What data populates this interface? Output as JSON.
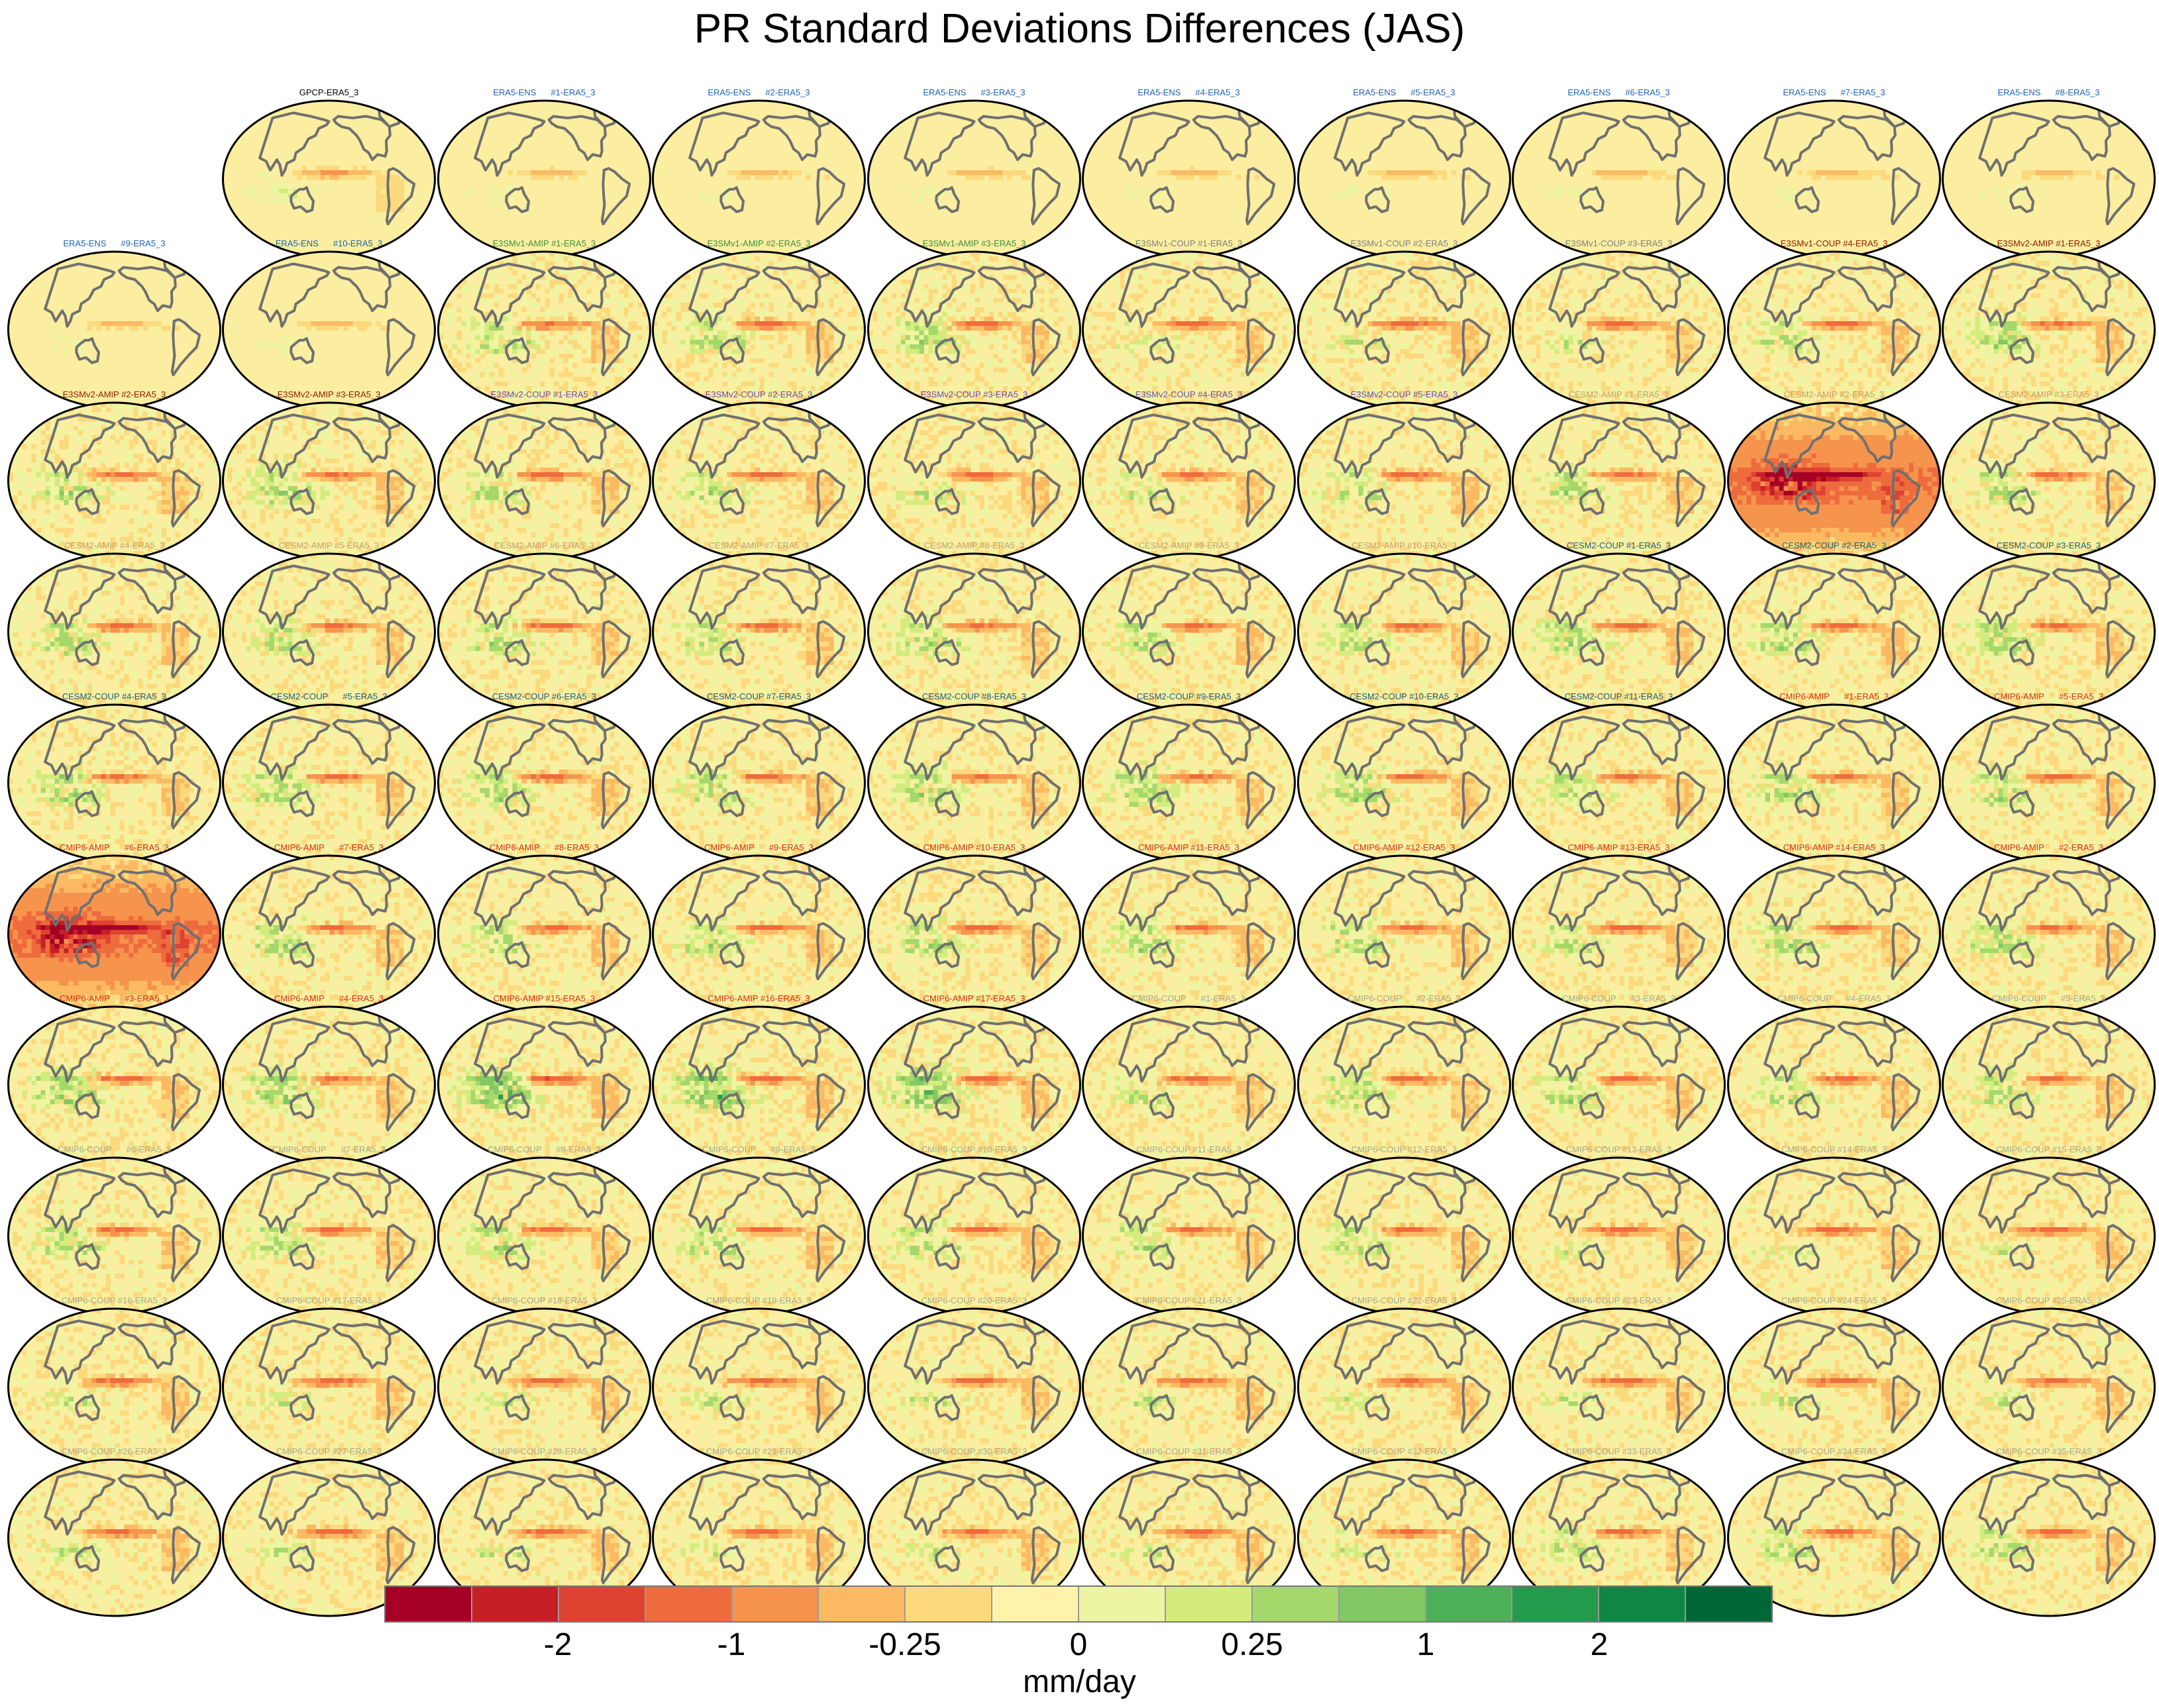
{
  "title": "PR Standard Deviations Differences (JAS)",
  "colorbar": {
    "colors": [
      "#a50026",
      "#c61f26",
      "#de4231",
      "#ee6b3d",
      "#f6944e",
      "#fbba62",
      "#fdd97d",
      "#fef3a8",
      "#edf5a2",
      "#d3ec7d",
      "#a5d86a",
      "#83c862",
      "#4fb05a",
      "#239a4c",
      "#0f8643",
      "#006837"
    ],
    "ticks": [
      {
        "label": "-2",
        "value": -2
      },
      {
        "label": "-1",
        "value": -1
      },
      {
        "label": "-0.25",
        "value": -0.25
      },
      {
        "label": "0",
        "value": 0
      },
      {
        "label": "0.25",
        "value": 0.25
      },
      {
        "label": "1",
        "value": 1
      },
      {
        "label": "2",
        "value": 2
      }
    ],
    "units": "mm/day"
  },
  "map_colors": {
    "ocean_background": "#fbeea0",
    "continent_outline": "#707070",
    "border": "#000000"
  },
  "label_colors": {
    "black": "#000000",
    "blue": "#1e63b4",
    "green": "#3f8f3f",
    "gray": "#808080",
    "darkred": "#8b1a00",
    "purple": "#6b4fa8",
    "tan": "#c49c6c",
    "teal": "#1a5f7a",
    "red": "#d0321a",
    "olive": "#a8a88a"
  },
  "panels": [
    [
      null,
      {
        "a": "GPCP-ERA5_3",
        "c": "black",
        "int": 0.5,
        "bias": 0
      },
      {
        "a": "ERA5-ENS",
        "b": "#1-ERA5_3",
        "c": "blue",
        "int": 0.3,
        "bias": 0
      },
      {
        "a": "ERA5-ENS",
        "b": "#2-ERA5_3",
        "c": "blue",
        "int": 0.3,
        "bias": 0
      },
      {
        "a": "ERA5-ENS",
        "b": "#3-ERA5_3",
        "c": "blue",
        "int": 0.3,
        "bias": 0
      },
      {
        "a": "ERA5-ENS",
        "b": "#4-ERA5_3",
        "c": "blue",
        "int": 0.3,
        "bias": 0
      },
      {
        "a": "ERA5-ENS",
        "b": "#5-ERA5_3",
        "c": "blue",
        "int": 0.3,
        "bias": 0
      },
      {
        "a": "ERA5-ENS",
        "b": "#6-ERA5_3",
        "c": "blue",
        "int": 0.3,
        "bias": 0
      },
      {
        "a": "ERA5-ENS",
        "b": "#7-ERA5_3",
        "c": "blue",
        "int": 0.3,
        "bias": 0
      },
      {
        "a": "ERA5-ENS",
        "b": "#8-ERA5_3",
        "c": "blue",
        "int": 0.3,
        "bias": 0
      }
    ],
    [
      {
        "a": "ERA5-ENS",
        "b": "#9-ERA5_3",
        "c": "blue",
        "int": 0.3,
        "bias": 0
      },
      {
        "a": "ERA5-ENS",
        "b": "#10-ERA5_3",
        "c": "blue",
        "int": 0.3,
        "bias": 0
      },
      {
        "a": "E3SMv1-AMIP #1-ERA5_3",
        "c": "green",
        "int": 1.0,
        "bias": 0.3
      },
      {
        "a": "E3SMv1-AMIP #2-ERA5_3",
        "c": "green",
        "int": 1.0,
        "bias": 0.3
      },
      {
        "a": "E3SMv1-AMIP #3-ERA5_3",
        "c": "green",
        "int": 1.0,
        "bias": 0.3
      },
      {
        "a": "E3SMv1-COUP #1-ERA5_3",
        "c": "gray",
        "int": 1.0,
        "bias": 0
      },
      {
        "a": "E3SMv1-COUP #2-ERA5_3",
        "c": "gray",
        "int": 1.0,
        "bias": 0
      },
      {
        "a": "E3SMv1-COUP #3-ERA5_3",
        "c": "gray",
        "int": 1.0,
        "bias": 0
      },
      {
        "a": "E3SMv1-COUP #4-ERA5_3",
        "c": "darkred",
        "int": 1.0,
        "bias": 0.2
      },
      {
        "a": "E3SMv2-AMIP #1-ERA5_3",
        "c": "darkred",
        "int": 1.0,
        "bias": 0.4
      }
    ],
    [
      {
        "a": "E3SMv2-AMIP #2-ERA5_3",
        "c": "darkred",
        "int": 1.0,
        "bias": 0.3
      },
      {
        "a": "E3SMv2-AMIP #3-ERA5_3",
        "c": "darkred",
        "int": 1.0,
        "bias": 0.4
      },
      {
        "a": "E3SMv2-COUP #1-ERA5_3",
        "c": "purple",
        "int": 1.0,
        "bias": 0.2
      },
      {
        "a": "E3SMv2-COUP #2-ERA5_3",
        "c": "purple",
        "int": 1.0,
        "bias": 0.2
      },
      {
        "a": "E3SMv2-COUP #3-ERA5_3",
        "c": "purple",
        "int": 1.0,
        "bias": 0.1
      },
      {
        "a": "E3SMv2-COUP #4-ERA5_3",
        "c": "purple",
        "int": 1.0,
        "bias": 0.1
      },
      {
        "a": "E3SMv2-COUP #5-ERA5_3",
        "c": "purple",
        "int": 1.0,
        "bias": 0.2
      },
      {
        "a": "CESM2-AMIP #1-ERA5_3",
        "c": "tan",
        "int": 1.0,
        "bias": 0.3
      },
      {
        "a": "CESM2-AMIP #2-ERA5_3",
        "c": "tan",
        "int": 1.6,
        "bias": -1.4
      },
      {
        "a": "CESM2-AMIP #3-ERA5_3",
        "c": "tan",
        "int": 1.0,
        "bias": 0.3
      }
    ],
    [
      {
        "a": "CESM2-AMIP #4-ERA5_3",
        "c": "tan",
        "int": 1.0,
        "bias": 0.3
      },
      {
        "a": "CESM2-AMIP #5-ERA5_3",
        "c": "tan",
        "int": 1.0,
        "bias": 0.3
      },
      {
        "a": "CESM2-AMIP #6-ERA5_3",
        "c": "tan",
        "int": 1.0,
        "bias": 0.3
      },
      {
        "a": "CESM2-AMIP #7-ERA5_3",
        "c": "tan",
        "int": 1.0,
        "bias": 0.3
      },
      {
        "a": "CESM2-AMIP #8-ERA5_3",
        "c": "tan",
        "int": 1.0,
        "bias": 0.3
      },
      {
        "a": "CESM2-AMIP #9-ERA5_3",
        "c": "tan",
        "int": 1.0,
        "bias": 0.3
      },
      {
        "a": "CESM2-AMIP #10-ERA5_3",
        "c": "tan",
        "int": 1.0,
        "bias": 0.3
      },
      {
        "a": "CESM2-COUP #1-ERA5_3",
        "c": "teal",
        "int": 1.0,
        "bias": 0.4
      },
      {
        "a": "CESM2-COUP #2-ERA5_3",
        "c": "teal",
        "int": 1.0,
        "bias": 0.4
      },
      {
        "a": "CESM2-COUP #3-ERA5_3",
        "c": "teal",
        "int": 1.0,
        "bias": 0.4
      }
    ],
    [
      {
        "a": "CESM2-COUP #4-ERA5_3",
        "c": "teal",
        "int": 1.0,
        "bias": 0.4
      },
      {
        "a": "CESM2-COUP",
        "b": "#5-ERA5_3",
        "c": "teal",
        "int": 1.0,
        "bias": 0.4
      },
      {
        "a": "CESM2-COUP #6-ERA5_3",
        "c": "teal",
        "int": 1.0,
        "bias": 0.4
      },
      {
        "a": "CESM2-COUP #7-ERA5_3",
        "c": "teal",
        "int": 1.0,
        "bias": 0.4
      },
      {
        "a": "CESM2-COUP #8-ERA5_3",
        "c": "teal",
        "int": 1.0,
        "bias": 0.4
      },
      {
        "a": "CESM2-COUP #9-ERA5_3",
        "c": "teal",
        "int": 1.0,
        "bias": 0.4
      },
      {
        "a": "CESM2-COUP #10-ERA5_3",
        "c": "teal",
        "int": 1.0,
        "bias": 0.4
      },
      {
        "a": "CESM2-COUP #11-ERA5_3",
        "c": "teal",
        "int": 1.0,
        "bias": 0.4
      },
      {
        "a": "CMIP6-AMIP",
        "b": "#1-ERA5_3",
        "c": "red",
        "int": 1.0,
        "bias": 0.3
      },
      {
        "a": "CMIP6-AMIP",
        "b": "#5-ERA5_3",
        "c": "red",
        "int": 1.0,
        "bias": 0.3
      }
    ],
    [
      {
        "a": "CMIP6-AMIP",
        "b": "#6-ERA5_3",
        "c": "red",
        "int": 1.6,
        "bias": -1.4
      },
      {
        "a": "CMIP6-AMIP",
        "b": "#7-ERA5_3",
        "c": "red",
        "int": 1.0,
        "bias": 0.3
      },
      {
        "a": "CMIP6-AMIP",
        "b": "#8-ERA5_3",
        "c": "red",
        "int": 1.0,
        "bias": 0.3
      },
      {
        "a": "CMIP6-AMIP",
        "b": "#9-ERA5_3",
        "c": "red",
        "int": 1.0,
        "bias": 0.3
      },
      {
        "a": "CMIP6-AMIP #10-ERA5_3",
        "c": "red",
        "int": 1.0,
        "bias": 0.3
      },
      {
        "a": "CMIP6-AMIP #11-ERA5_3",
        "c": "red",
        "int": 1.0,
        "bias": 0.3
      },
      {
        "a": "CMIP6-AMIP #12-ERA5_3",
        "c": "red",
        "int": 1.0,
        "bias": 0.3
      },
      {
        "a": "CMIP6-AMIP #13-ERA5_3",
        "c": "red",
        "int": 1.0,
        "bias": 0.2
      },
      {
        "a": "CMIP6-AMIP #14-ERA5_3",
        "c": "red",
        "int": 1.0,
        "bias": 0.3
      },
      {
        "a": "CMIP6-AMIP",
        "b": "#2-ERA5_3",
        "c": "red",
        "int": 1.0,
        "bias": 0.4
      }
    ],
    [
      {
        "a": "CMIP6-AMIP",
        "b": "#3-ERA5_3",
        "c": "red",
        "int": 1.0,
        "bias": 0.5
      },
      {
        "a": "CMIP6-AMIP",
        "b": "#4-ERA5_3",
        "c": "red",
        "int": 1.0,
        "bias": 0.5
      },
      {
        "a": "CMIP6-AMIP #15-ERA5_3",
        "c": "red",
        "int": 1.2,
        "bias": 0.7
      },
      {
        "a": "CMIP6-AMIP #16-ERA5_3",
        "c": "red",
        "int": 1.2,
        "bias": 0.7
      },
      {
        "a": "CMIP6-AMIP #17-ERA5_3",
        "c": "red",
        "int": 1.2,
        "bias": 0.7
      },
      {
        "a": "CMIP6-COUP",
        "b": "#1-ERA5_3",
        "c": "olive",
        "int": 1.0,
        "bias": 0.1
      },
      {
        "a": "CMIP6-COUP",
        "b": "#2-ERA5_3",
        "c": "olive",
        "int": 1.0,
        "bias": 0.3
      },
      {
        "a": "CMIP6-COUP",
        "b": "#3-ERA5_3",
        "c": "olive",
        "int": 1.0,
        "bias": 0.3
      },
      {
        "a": "CMIP6-COUP",
        "b": "#4-ERA5_3",
        "c": "olive",
        "int": 1.0,
        "bias": 0.3
      },
      {
        "a": "CMIP6-COUP",
        "b": "#5-ERA5_3",
        "c": "olive",
        "int": 1.0,
        "bias": 0.3
      }
    ],
    [
      {
        "a": "CMIP6-COUP",
        "b": "#6-ERA5_3",
        "c": "olive",
        "int": 1.0,
        "bias": 0.3
      },
      {
        "a": "CMIP6-COUP",
        "b": "#7-ERA5_3",
        "c": "olive",
        "int": 1.0,
        "bias": 0.3
      },
      {
        "a": "CMIP6-COUP",
        "b": "#8-ERA5_3",
        "c": "olive",
        "int": 1.0,
        "bias": 0.3
      },
      {
        "a": "CMIP6-COUP",
        "b": "#9-ERA5_3",
        "c": "olive",
        "int": 1.0,
        "bias": 0.3
      },
      {
        "a": "CMIP6-COUP #10-ERA5_3",
        "c": "olive",
        "int": 1.0,
        "bias": 0.3
      },
      {
        "a": "CMIP6-COUP #11-ERA5_3",
        "c": "olive",
        "int": 1.0,
        "bias": 0.3
      },
      {
        "a": "CMIP6-COUP #12-ERA5_3",
        "c": "olive",
        "int": 1.0,
        "bias": 0.3
      },
      {
        "a": "CMIP6-COUP #13-ERA5_3",
        "c": "olive",
        "int": 1.0,
        "bias": -0.1
      },
      {
        "a": "CMIP6-COUP #14-ERA5_3",
        "c": "olive",
        "int": 1.0,
        "bias": -0.1
      },
      {
        "a": "CMIP6-COUP #15-ERA5_3",
        "c": "olive",
        "int": 1.0,
        "bias": -0.1
      }
    ],
    [
      {
        "a": "CMIP6-COUP #16-ERA5_3",
        "c": "olive",
        "int": 1.0,
        "bias": 0
      },
      {
        "a": "CMIP6-COUP #17-ERA5_3",
        "c": "olive",
        "int": 1.0,
        "bias": 0
      },
      {
        "a": "CMIP6-COUP #18-ERA5_3",
        "c": "olive",
        "int": 1.0,
        "bias": 0
      },
      {
        "a": "CMIP6-COUP #19-ERA5_3",
        "c": "olive",
        "int": 1.0,
        "bias": 0
      },
      {
        "a": "CMIP6-COUP #20-ERA5_3",
        "c": "olive",
        "int": 1.0,
        "bias": 0
      },
      {
        "a": "CMIP6-COUP #21-ERA5_3",
        "c": "olive",
        "int": 1.0,
        "bias": 0
      },
      {
        "a": "CMIP6-COUP #22-ERA5_3",
        "c": "olive",
        "int": 1.0,
        "bias": 0
      },
      {
        "a": "CMIP6-COUP #23-ERA5_3",
        "c": "olive",
        "int": 1.0,
        "bias": 0
      },
      {
        "a": "CMIP6-COUP #24-ERA5_3",
        "c": "olive",
        "int": 1.0,
        "bias": 0
      },
      {
        "a": "CMIP6-COUP #25-ERA5_3",
        "c": "olive",
        "int": 1.0,
        "bias": 0
      }
    ],
    [
      {
        "a": "CMIP6-COUP #26-ERA5_3",
        "c": "olive",
        "int": 1.0,
        "bias": 0
      },
      {
        "a": "CMIP6-COUP #27-ERA5_3",
        "c": "olive",
        "int": 1.0,
        "bias": 0
      },
      {
        "a": "CMIP6-COUP #28-ERA5_3",
        "c": "olive",
        "int": 1.0,
        "bias": 0
      },
      {
        "a": "CMIP6-COUP #29-ERA5_3",
        "c": "olive",
        "int": 1.0,
        "bias": 0
      },
      {
        "a": "CMIP6-COUP #30-ERA5_3",
        "c": "olive",
        "int": 1.0,
        "bias": 0
      },
      {
        "a": "CMIP6-COUP #31-ERA5_3",
        "c": "olive",
        "int": 1.0,
        "bias": 0
      },
      {
        "a": "CMIP6-COUP #32-ERA5_3",
        "c": "olive",
        "int": 1.0,
        "bias": 0
      },
      {
        "a": "CMIP6-COUP #33-ERA5_3",
        "c": "olive",
        "int": 1.0,
        "bias": 0.2
      },
      {
        "a": "CMIP6-COUP #34-ERA5_3",
        "c": "olive",
        "int": 1.0,
        "bias": 0.2
      },
      {
        "a": "CMIP6-COUP #35-ERA5_3",
        "c": "olive",
        "int": 1.0,
        "bias": 0.2
      }
    ]
  ]
}
